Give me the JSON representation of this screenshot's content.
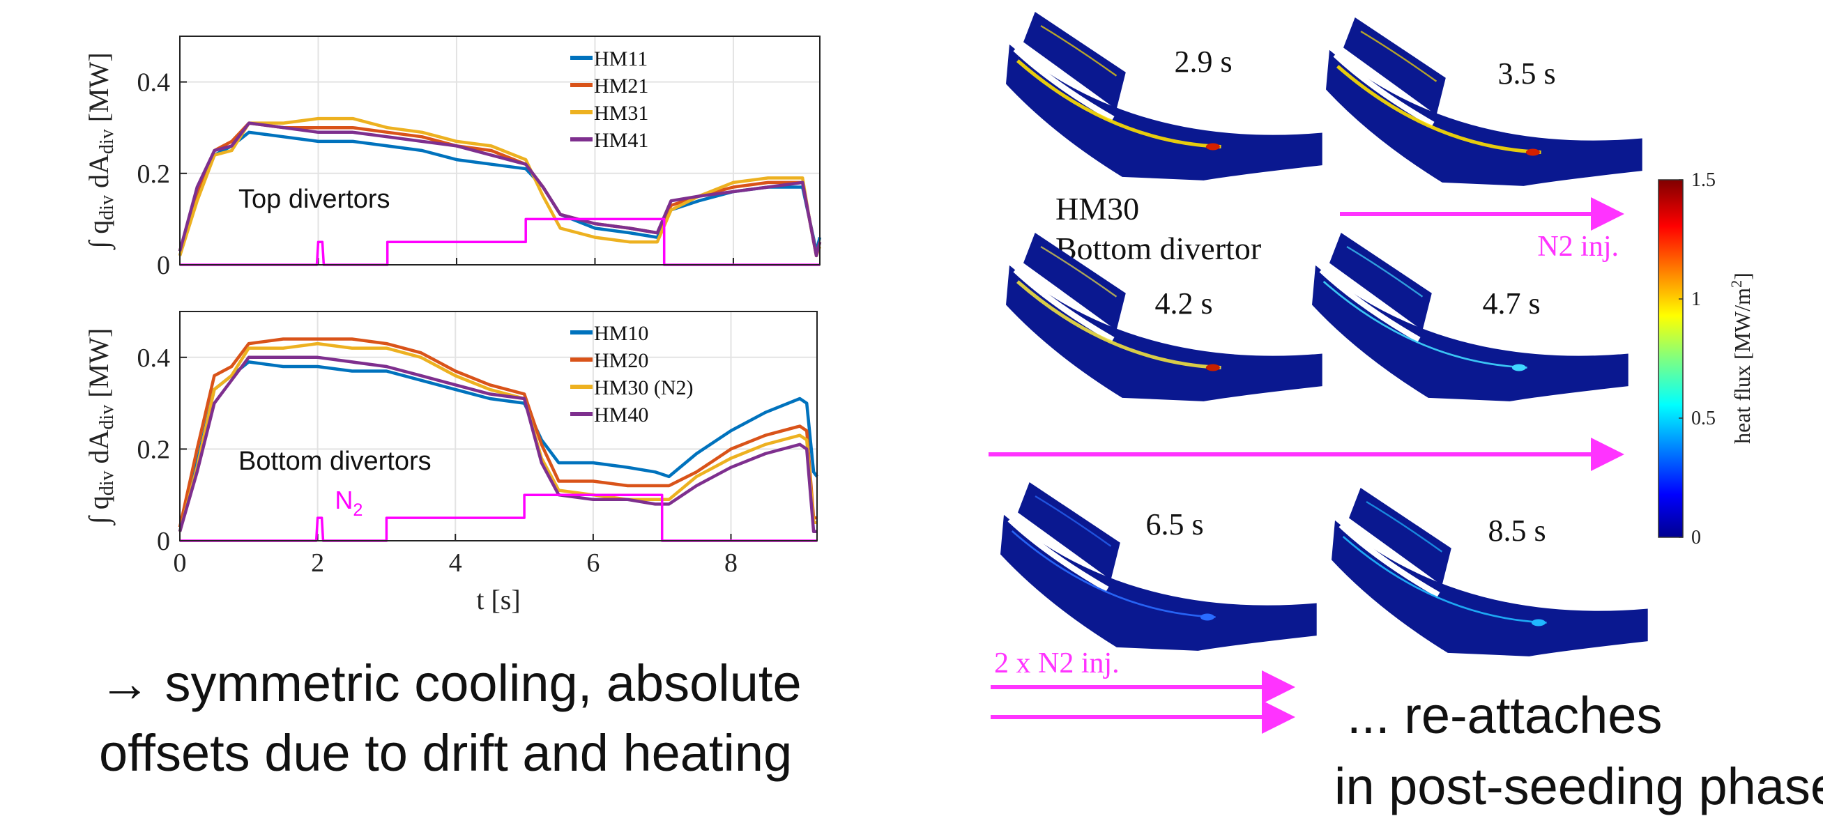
{
  "chart_data": [
    {
      "type": "line",
      "x": [
        0,
        0.25,
        0.5,
        0.75,
        1,
        1.5,
        2,
        2.5,
        3,
        3.5,
        4,
        4.5,
        5,
        5.25,
        5.5,
        6,
        6.5,
        6.9,
        7.1,
        7.5,
        8,
        8.5,
        9,
        9.1,
        9.2,
        9.25
      ],
      "series": [
        {
          "name": "HM11",
          "color": "#0072bd",
          "values": [
            0.02,
            0.15,
            0.24,
            0.26,
            0.29,
            0.28,
            0.27,
            0.27,
            0.26,
            0.25,
            0.23,
            0.22,
            0.21,
            0.17,
            0.11,
            0.08,
            0.07,
            0.06,
            0.12,
            0.14,
            0.16,
            0.17,
            0.17,
            0.1,
            0.03,
            0.06
          ]
        },
        {
          "name": "HM21",
          "color": "#d95319",
          "values": [
            0.03,
            0.16,
            0.25,
            0.27,
            0.31,
            0.3,
            0.3,
            0.3,
            0.29,
            0.28,
            0.26,
            0.25,
            0.22,
            0.17,
            0.11,
            0.09,
            0.08,
            0.07,
            0.13,
            0.15,
            0.17,
            0.18,
            0.18,
            0.1,
            0.02,
            0.05
          ]
        },
        {
          "name": "HM31",
          "color": "#edb120",
          "values": [
            0.02,
            0.14,
            0.24,
            0.25,
            0.31,
            0.31,
            0.32,
            0.32,
            0.3,
            0.29,
            0.27,
            0.26,
            0.23,
            0.15,
            0.08,
            0.06,
            0.05,
            0.05,
            0.12,
            0.15,
            0.18,
            0.19,
            0.19,
            0.1,
            0.02,
            0.04
          ]
        },
        {
          "name": "HM41",
          "color": "#7e2f8e",
          "values": [
            0.03,
            0.17,
            0.25,
            0.26,
            0.31,
            0.3,
            0.29,
            0.29,
            0.28,
            0.27,
            0.26,
            0.24,
            0.22,
            0.17,
            0.11,
            0.09,
            0.08,
            0.07,
            0.14,
            0.15,
            0.16,
            0.17,
            0.18,
            0.1,
            0.02,
            0.05
          ]
        },
        {
          "color": "#ff00ff",
          "x": [
            0,
            1.98,
            2.0,
            2.06,
            2.08,
            3.0,
            3.0,
            5.0,
            5.0,
            7.0,
            7.0,
            9.25
          ],
          "values": [
            0,
            0,
            0.05,
            0.05,
            0,
            0,
            0.05,
            0.05,
            0.1,
            0.1,
            0,
            0
          ]
        }
      ],
      "annotation": "Top divertors",
      "ylabel": [
        "∫ q",
        "div",
        " dA",
        "div",
        " [MW]"
      ],
      "xlim": [
        0,
        9.25
      ],
      "ylim": [
        0,
        0.5
      ],
      "xticks": [
        0,
        2,
        4,
        6,
        8
      ],
      "yticks": [
        0,
        0.2,
        0.4
      ],
      "xticklabels": false,
      "grid": true,
      "legend": "upper right"
    },
    {
      "type": "line",
      "x": [
        0,
        0.25,
        0.5,
        0.75,
        1,
        1.5,
        2,
        2.5,
        3,
        3.5,
        4,
        4.5,
        5,
        5.25,
        5.5,
        6,
        6.5,
        6.9,
        7.1,
        7.5,
        8,
        8.5,
        9,
        9.1,
        9.2,
        9.25
      ],
      "series": [
        {
          "name": "HM10",
          "color": "#0072bd",
          "values": [
            0.02,
            0.17,
            0.33,
            0.36,
            0.39,
            0.38,
            0.38,
            0.37,
            0.37,
            0.35,
            0.33,
            0.31,
            0.3,
            0.22,
            0.17,
            0.17,
            0.16,
            0.15,
            0.14,
            0.19,
            0.24,
            0.28,
            0.31,
            0.3,
            0.15,
            0.14
          ]
        },
        {
          "name": "HM20",
          "color": "#d95319",
          "values": [
            0.03,
            0.2,
            0.36,
            0.38,
            0.43,
            0.44,
            0.44,
            0.44,
            0.43,
            0.41,
            0.37,
            0.34,
            0.32,
            0.21,
            0.13,
            0.13,
            0.12,
            0.12,
            0.12,
            0.15,
            0.2,
            0.23,
            0.25,
            0.24,
            0.05,
            0.05
          ]
        },
        {
          "name": "HM30 (N2)",
          "color": "#edb120",
          "values": [
            0.02,
            0.16,
            0.33,
            0.36,
            0.42,
            0.42,
            0.43,
            0.42,
            0.42,
            0.4,
            0.36,
            0.33,
            0.31,
            0.18,
            0.11,
            0.1,
            0.09,
            0.09,
            0.09,
            0.14,
            0.18,
            0.21,
            0.23,
            0.22,
            0.04,
            0.04
          ]
        },
        {
          "name": "HM40",
          "color": "#7e2f8e",
          "values": [
            0.02,
            0.15,
            0.3,
            0.35,
            0.4,
            0.4,
            0.4,
            0.39,
            0.38,
            0.36,
            0.34,
            0.32,
            0.31,
            0.17,
            0.1,
            0.09,
            0.09,
            0.08,
            0.08,
            0.12,
            0.16,
            0.19,
            0.21,
            0.2,
            0.02,
            0.02
          ]
        },
        {
          "color": "#ff00ff",
          "label": [
            "N",
            "2"
          ],
          "x": [
            0,
            1.98,
            2.0,
            2.06,
            2.08,
            3.0,
            3.0,
            5.0,
            5.0,
            7.0,
            7.0,
            9.25
          ],
          "values": [
            0,
            0,
            0.05,
            0.05,
            0,
            0,
            0.05,
            0.05,
            0.1,
            0.1,
            0,
            0
          ]
        }
      ],
      "annotation": "Bottom divertors",
      "ylabel": [
        "∫ q",
        "div",
        " dA",
        "div",
        " [MW]"
      ],
      "xlabel": "t [s]",
      "xlim": [
        0,
        9.25
      ],
      "ylim": [
        0,
        0.5
      ],
      "xticks": [
        0,
        2,
        4,
        6,
        8
      ],
      "yticks": [
        0,
        0.2,
        0.4
      ],
      "xticklabels": true,
      "grid": true,
      "legend": "upper right"
    }
  ],
  "colorbar": {
    "label": [
      "heat flux [MW/m",
      "2",
      "]"
    ],
    "ylim": [
      0,
      1.5
    ],
    "yticks": [
      0,
      0.5,
      1,
      1.5
    ]
  },
  "images": [
    {
      "label": "2.9 s"
    },
    {
      "label": "3.5 s"
    },
    {
      "label": "4.2 s"
    },
    {
      "label": "4.7 s"
    },
    {
      "label": "6.5 s"
    },
    {
      "label": "8.5 s"
    }
  ],
  "texts": {
    "camera": "HM30",
    "location": "Bottom divertor",
    "injection": "N2 inj.",
    "double_injection": "2 x N2 inj.",
    "conclusion": [
      "→ symmetric cooling, absolute",
      "offsets due to drift and heating"
    ],
    "reattach": [
      "... re-attaches",
      "in post-seeding phase"
    ]
  }
}
